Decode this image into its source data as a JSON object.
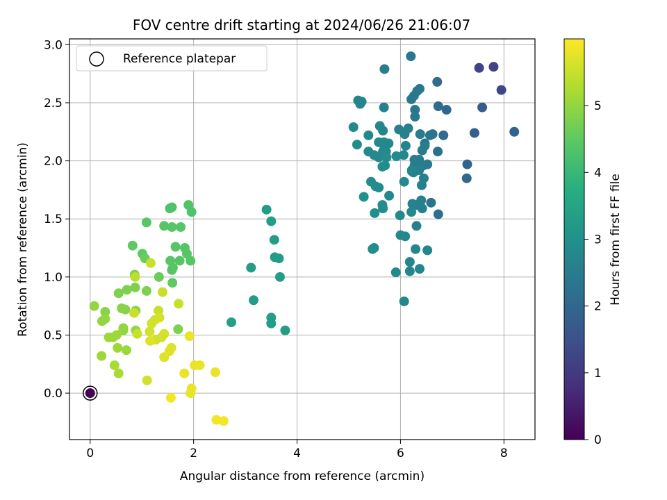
{
  "chart_data": {
    "type": "scatter",
    "title": "FOV centre drift starting at 2024/06/26 21:06:07",
    "xlabel": "Angular distance from reference (arcmin)",
    "ylabel": "Rotation from reference (arcmin)",
    "xlim": [
      -0.4,
      8.6
    ],
    "ylim": [
      -0.4,
      3.05
    ],
    "xticks": [
      "0",
      "2",
      "4",
      "6",
      "8"
    ],
    "yticks": [
      "0.0",
      "0.5",
      "1.0",
      "1.5",
      "2.0",
      "2.5",
      "3.0"
    ],
    "grid": true,
    "legend": {
      "placement": "top-left",
      "entries": [
        "Reference platepar"
      ]
    },
    "colorbar": {
      "label": "Hours from first FF file",
      "range": [
        0,
        6
      ],
      "ticks": [
        "0",
        "1",
        "2",
        "3",
        "4",
        "5"
      ],
      "colormap": "viridis"
    },
    "reference_point": {
      "x": 0,
      "y": 0
    },
    "points": [
      [
        0.0,
        0.0,
        0.0
      ],
      [
        8.2,
        2.25,
        1.9
      ],
      [
        7.95,
        2.61,
        1.3
      ],
      [
        7.52,
        2.8,
        1.2
      ],
      [
        7.8,
        2.81,
        1.2
      ],
      [
        7.58,
        2.46,
        1.7
      ],
      [
        7.43,
        2.24,
        1.8
      ],
      [
        7.29,
        1.97,
        1.9
      ],
      [
        7.28,
        1.85,
        2.0
      ],
      [
        6.71,
        2.68,
        2.1
      ],
      [
        6.83,
        2.22,
        2.1
      ],
      [
        6.89,
        2.44,
        2.0
      ],
      [
        6.73,
        2.47,
        2.1
      ],
      [
        6.72,
        2.08,
        2.2
      ],
      [
        6.73,
        1.54,
        2.2
      ],
      [
        6.57,
        2.22,
        2.3
      ],
      [
        6.62,
        2.23,
        2.3
      ],
      [
        6.59,
        1.64,
        2.3
      ],
      [
        6.47,
        2.15,
        2.3
      ],
      [
        6.37,
        2.62,
        2.4
      ],
      [
        6.32,
        2.6,
        2.4
      ],
      [
        6.26,
        2.56,
        2.4
      ],
      [
        6.21,
        2.53,
        2.4
      ],
      [
        6.2,
        2.9,
        2.4
      ],
      [
        6.28,
        2.44,
        2.4
      ],
      [
        6.28,
        2.38,
        2.4
      ],
      [
        6.38,
        2.23,
        2.5
      ],
      [
        6.47,
        2.13,
        2.5
      ],
      [
        6.42,
        2.09,
        2.5
      ],
      [
        6.27,
        2.01,
        2.5
      ],
      [
        6.36,
        2.01,
        2.5
      ],
      [
        6.27,
        1.96,
        2.5
      ],
      [
        6.44,
        1.96,
        2.5
      ],
      [
        6.52,
        1.97,
        2.5
      ],
      [
        6.25,
        1.9,
        2.6
      ],
      [
        6.36,
        1.92,
        2.6
      ],
      [
        6.22,
        1.91,
        2.6
      ],
      [
        6.45,
        1.85,
        2.6
      ],
      [
        6.41,
        1.79,
        2.6
      ],
      [
        6.23,
        1.63,
        2.6
      ],
      [
        6.31,
        1.62,
        2.6
      ],
      [
        6.4,
        1.66,
        2.6
      ],
      [
        6.42,
        1.59,
        2.6
      ],
      [
        6.31,
        1.44,
        2.6
      ],
      [
        6.29,
        1.24,
        2.7
      ],
      [
        6.52,
        1.23,
        2.7
      ],
      [
        6.37,
        1.07,
        2.7
      ],
      [
        6.18,
        1.05,
        2.7
      ],
      [
        6.18,
        1.13,
        2.7
      ],
      [
        6.07,
        0.79,
        2.7
      ],
      [
        6.09,
        1.35,
        2.8
      ],
      [
        6.0,
        1.36,
        2.8
      ],
      [
        6.07,
        1.82,
        2.8
      ],
      [
        6.21,
        1.56,
        2.8
      ],
      [
        5.99,
        1.53,
        2.8
      ],
      [
        5.91,
        1.04,
        2.8
      ],
      [
        5.78,
        1.7,
        2.8
      ],
      [
        5.66,
        1.59,
        2.9
      ],
      [
        5.65,
        1.62,
        2.9
      ],
      [
        5.5,
        1.55,
        2.9
      ],
      [
        5.49,
        1.25,
        2.9
      ],
      [
        5.46,
        1.24,
        2.9
      ],
      [
        5.52,
        1.78,
        2.9
      ],
      [
        5.43,
        1.82,
        2.9
      ],
      [
        5.58,
        1.77,
        2.9
      ],
      [
        5.29,
        1.69,
        3.0
      ],
      [
        5.18,
        2.52,
        2.7
      ],
      [
        5.25,
        2.51,
        2.7
      ],
      [
        5.22,
        2.49,
        2.7
      ],
      [
        5.09,
        2.29,
        2.8
      ],
      [
        5.16,
        2.14,
        2.9
      ],
      [
        5.38,
        2.22,
        2.8
      ],
      [
        5.38,
        2.08,
        2.8
      ],
      [
        5.49,
        2.05,
        2.8
      ],
      [
        5.58,
        2.03,
        2.8
      ],
      [
        5.69,
        2.79,
        2.5
      ],
      [
        5.68,
        2.46,
        2.6
      ],
      [
        5.6,
        2.3,
        2.7
      ],
      [
        5.66,
        2.26,
        2.7
      ],
      [
        5.58,
        2.16,
        2.8
      ],
      [
        5.68,
        2.16,
        2.8
      ],
      [
        5.69,
        2.12,
        2.8
      ],
      [
        5.72,
        2.08,
        2.8
      ],
      [
        5.66,
        2.08,
        2.8
      ],
      [
        5.77,
        2.15,
        2.8
      ],
      [
        5.73,
        2.03,
        2.9
      ],
      [
        5.65,
        1.95,
        2.9
      ],
      [
        5.7,
        1.96,
        2.9
      ],
      [
        5.92,
        2.04,
        2.8
      ],
      [
        5.97,
        2.27,
        2.6
      ],
      [
        6.06,
        2.05,
        2.8
      ],
      [
        6.1,
        2.13,
        2.7
      ],
      [
        6.08,
        2.23,
        2.6
      ],
      [
        6.15,
        2.28,
        2.6
      ],
      [
        6.22,
        1.92,
        2.7
      ],
      [
        3.41,
        1.58,
        3.3
      ],
      [
        3.5,
        1.48,
        3.3
      ],
      [
        3.56,
        1.32,
        3.3
      ],
      [
        3.57,
        1.17,
        3.3
      ],
      [
        3.65,
        1.16,
        3.3
      ],
      [
        3.67,
        1.0,
        3.3
      ],
      [
        3.11,
        1.08,
        3.3
      ],
      [
        3.16,
        0.8,
        3.3
      ],
      [
        3.5,
        0.65,
        3.3
      ],
      [
        3.5,
        0.6,
        3.3
      ],
      [
        3.77,
        0.54,
        3.3
      ],
      [
        2.73,
        0.61,
        3.4
      ],
      [
        1.9,
        1.62,
        4.3
      ],
      [
        1.58,
        1.6,
        4.3
      ],
      [
        1.54,
        1.59,
        4.3
      ],
      [
        1.96,
        1.56,
        4.3
      ],
      [
        1.09,
        1.47,
        4.4
      ],
      [
        1.43,
        1.44,
        4.4
      ],
      [
        1.58,
        1.43,
        4.4
      ],
      [
        1.75,
        1.43,
        4.4
      ],
      [
        0.82,
        1.27,
        4.5
      ],
      [
        1.65,
        1.26,
        4.4
      ],
      [
        1.83,
        1.25,
        4.4
      ],
      [
        1.87,
        1.2,
        4.4
      ],
      [
        1.01,
        1.2,
        4.5
      ],
      [
        1.06,
        1.16,
        4.6
      ],
      [
        1.55,
        1.14,
        4.4
      ],
      [
        1.73,
        1.14,
        4.4
      ],
      [
        1.94,
        1.14,
        4.4
      ],
      [
        1.6,
        1.08,
        4.4
      ],
      [
        1.58,
        1.06,
        4.4
      ],
      [
        1.33,
        1.0,
        4.6
      ],
      [
        1.59,
        0.95,
        4.5
      ],
      [
        0.86,
        1.02,
        4.8
      ],
      [
        0.87,
        0.91,
        4.8
      ],
      [
        1.09,
        0.88,
        4.8
      ],
      [
        0.71,
        0.89,
        4.8
      ],
      [
        0.55,
        0.86,
        4.8
      ],
      [
        0.88,
        0.71,
        4.9
      ],
      [
        0.61,
        0.73,
        4.9
      ],
      [
        0.68,
        0.72,
        4.9
      ],
      [
        0.29,
        0.7,
        4.9
      ],
      [
        0.08,
        0.75,
        5.0
      ],
      [
        0.29,
        0.64,
        5.0
      ],
      [
        0.23,
        0.62,
        5.0
      ],
      [
        0.64,
        0.56,
        5.0
      ],
      [
        0.64,
        0.54,
        5.0
      ],
      [
        0.88,
        0.54,
        5.0
      ],
      [
        1.7,
        0.55,
        4.8
      ],
      [
        0.51,
        0.5,
        5.1
      ],
      [
        0.36,
        0.48,
        5.1
      ],
      [
        0.44,
        0.48,
        5.1
      ],
      [
        0.53,
        0.39,
        5.1
      ],
      [
        0.7,
        0.37,
        5.1
      ],
      [
        0.22,
        0.32,
        5.1
      ],
      [
        0.47,
        0.24,
        5.2
      ],
      [
        0.55,
        0.17,
        5.2
      ],
      [
        0.87,
        1.0,
        5.4
      ],
      [
        1.17,
        1.12,
        5.5
      ],
      [
        1.4,
        0.87,
        5.5
      ],
      [
        1.71,
        0.77,
        5.5
      ],
      [
        1.32,
        0.71,
        5.5
      ],
      [
        0.85,
        0.69,
        5.5
      ],
      [
        1.34,
        0.65,
        5.6
      ],
      [
        1.25,
        0.63,
        5.6
      ],
      [
        1.19,
        0.6,
        5.6
      ],
      [
        0.91,
        0.51,
        5.5
      ],
      [
        1.43,
        0.51,
        5.6
      ],
      [
        1.38,
        0.48,
        5.6
      ],
      [
        1.15,
        0.53,
        5.6
      ],
      [
        1.27,
        0.46,
        5.6
      ],
      [
        1.16,
        0.45,
        5.7
      ],
      [
        1.57,
        0.39,
        5.7
      ],
      [
        1.53,
        0.36,
        5.7
      ],
      [
        1.43,
        0.31,
        5.7
      ],
      [
        1.92,
        0.49,
        5.8
      ],
      [
        2.02,
        0.24,
        5.8
      ],
      [
        2.12,
        0.24,
        5.8
      ],
      [
        1.82,
        0.17,
        5.8
      ],
      [
        2.42,
        0.18,
        5.8
      ],
      [
        1.96,
        0.04,
        5.8
      ],
      [
        1.94,
        0.0,
        5.8
      ],
      [
        1.1,
        0.11,
        5.6
      ],
      [
        1.56,
        -0.04,
        5.9
      ],
      [
        2.44,
        -0.23,
        5.9
      ],
      [
        2.58,
        -0.24,
        5.9
      ]
    ]
  }
}
